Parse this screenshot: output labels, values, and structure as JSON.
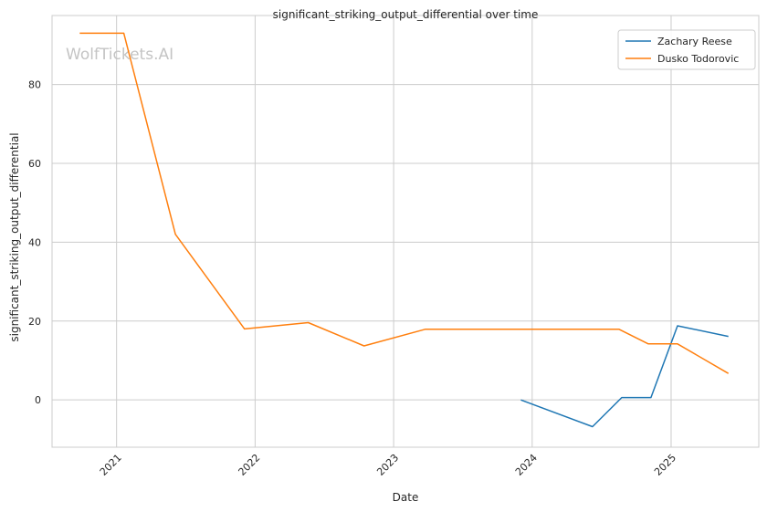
{
  "chart_data": {
    "type": "line",
    "title": "significant_striking_output_differential over time",
    "xlabel": "Date",
    "ylabel": "significant_striking_output_differential",
    "watermark": "WolfTickets.AI",
    "x_ticks": [
      "2021",
      "2022",
      "2023",
      "2024",
      "2025"
    ],
    "y_ticks": [
      "0",
      "20",
      "40",
      "60",
      "80"
    ],
    "xlim": [
      "2020-07-15",
      "2025-08-20"
    ],
    "ylim": [
      -12,
      97.5
    ],
    "grid": true,
    "legend_position": "top-right",
    "colors": {
      "Zachary Reese": "#1f77b4",
      "Dusko Todorovic": "#ff7f0e",
      "grid": "#cccccc",
      "axes": "#cccccc"
    },
    "series": [
      {
        "name": "Zachary Reese",
        "x": [
          "2023-12-02",
          "2024-06-08",
          "2024-08-24",
          "2024-11-09",
          "2025-01-18",
          "2025-06-01"
        ],
        "y": [
          0,
          -6.8,
          0.6,
          0.6,
          18.8,
          16.1
        ]
      },
      {
        "name": "Dusko Todorovic",
        "x": [
          "2020-09-26",
          "2021-01-20",
          "2021-06-05",
          "2021-12-04",
          "2022-05-21",
          "2022-10-15",
          "2023-03-25",
          "2024-08-17",
          "2024-11-02",
          "2025-01-18",
          "2025-06-01"
        ],
        "y": [
          93,
          93,
          42,
          18,
          19.6,
          13.7,
          17.9,
          17.9,
          14.2,
          14.2,
          6.7
        ]
      }
    ]
  }
}
